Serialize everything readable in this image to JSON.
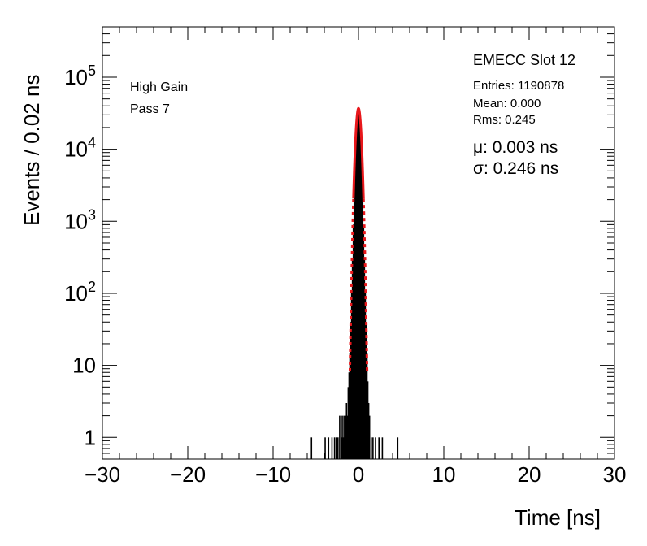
{
  "chart_data": {
    "type": "histogram",
    "xlabel": "Time [ns]",
    "ylabel": "Events / 0.02 ns",
    "xlim": [
      -30,
      30
    ],
    "ylim": [
      0.5,
      500000
    ],
    "yscale": "log",
    "x_ticks": [
      -30,
      -20,
      -10,
      0,
      10,
      20,
      30
    ],
    "x_tick_labels": [
      "−30",
      "−20",
      "−10",
      "0",
      "10",
      "20",
      "30"
    ],
    "y_ticks": [
      {
        "value": 1,
        "base": "1",
        "exp": ""
      },
      {
        "value": 10,
        "base": "10",
        "exp": ""
      },
      {
        "value": 100,
        "base": "10",
        "exp": "2"
      },
      {
        "value": 1000,
        "base": "10",
        "exp": "3"
      },
      {
        "value": 10000,
        "base": "10",
        "exp": "4"
      },
      {
        "value": 100000,
        "base": "10",
        "exp": "5"
      }
    ],
    "histogram": {
      "color": "#000000",
      "bins": [
        {
          "x": -5.5,
          "y": 1
        },
        {
          "x": -3.9,
          "y": 1
        },
        {
          "x": -3.5,
          "y": 1
        },
        {
          "x": -3.1,
          "y": 1
        },
        {
          "x": -2.8,
          "y": 1
        },
        {
          "x": -2.6,
          "y": 1
        },
        {
          "x": -2.4,
          "y": 1
        },
        {
          "x": -2.2,
          "y": 2
        },
        {
          "x": -2.0,
          "y": 1
        },
        {
          "x": -1.9,
          "y": 2
        },
        {
          "x": -1.8,
          "y": 1
        },
        {
          "x": -1.7,
          "y": 2
        },
        {
          "x": -1.6,
          "y": 1
        },
        {
          "x": -1.5,
          "y": 2
        },
        {
          "x": -1.4,
          "y": 3
        },
        {
          "x": -1.3,
          "y": 2
        },
        {
          "x": -1.2,
          "y": 5
        },
        {
          "x": -1.1,
          "y": 8
        },
        {
          "x": -1.0,
          "y": 15
        },
        {
          "x": -0.9,
          "y": 40
        },
        {
          "x": -0.8,
          "y": 100
        },
        {
          "x": -0.7,
          "y": 300
        },
        {
          "x": -0.6,
          "y": 900
        },
        {
          "x": -0.5,
          "y": 2500
        },
        {
          "x": -0.4,
          "y": 6500
        },
        {
          "x": -0.3,
          "y": 14000
        },
        {
          "x": -0.2,
          "y": 24000
        },
        {
          "x": -0.1,
          "y": 33000
        },
        {
          "x": 0.0,
          "y": 37000
        },
        {
          "x": 0.1,
          "y": 33000
        },
        {
          "x": 0.2,
          "y": 24000
        },
        {
          "x": 0.3,
          "y": 14000
        },
        {
          "x": 0.4,
          "y": 6500
        },
        {
          "x": 0.5,
          "y": 2500
        },
        {
          "x": 0.6,
          "y": 900
        },
        {
          "x": 0.7,
          "y": 300
        },
        {
          "x": 0.8,
          "y": 100
        },
        {
          "x": 0.9,
          "y": 40
        },
        {
          "x": 1.0,
          "y": 15
        },
        {
          "x": 1.1,
          "y": 6
        },
        {
          "x": 1.2,
          "y": 3
        },
        {
          "x": 1.3,
          "y": 2
        },
        {
          "x": 1.5,
          "y": 1
        },
        {
          "x": 1.7,
          "y": 1
        },
        {
          "x": 2.0,
          "y": 1
        },
        {
          "x": 2.4,
          "y": 1
        },
        {
          "x": 2.8,
          "y": 1
        },
        {
          "x": 4.6,
          "y": 1
        }
      ]
    },
    "fit": {
      "type": "gaussian",
      "color": "#e8171b",
      "amplitude": 37000,
      "mu": 0.003,
      "sigma": 0.246
    }
  },
  "annotations": {
    "gain": "High Gain",
    "pass": "Pass 7"
  },
  "stats": {
    "title": "EMECC Slot 12",
    "entries": "Entries: 1190878",
    "mean": "Mean: 0.000",
    "rms": "Rms: 0.245",
    "mu": "μ: 0.003 ns",
    "sigma": "σ: 0.246 ns"
  }
}
